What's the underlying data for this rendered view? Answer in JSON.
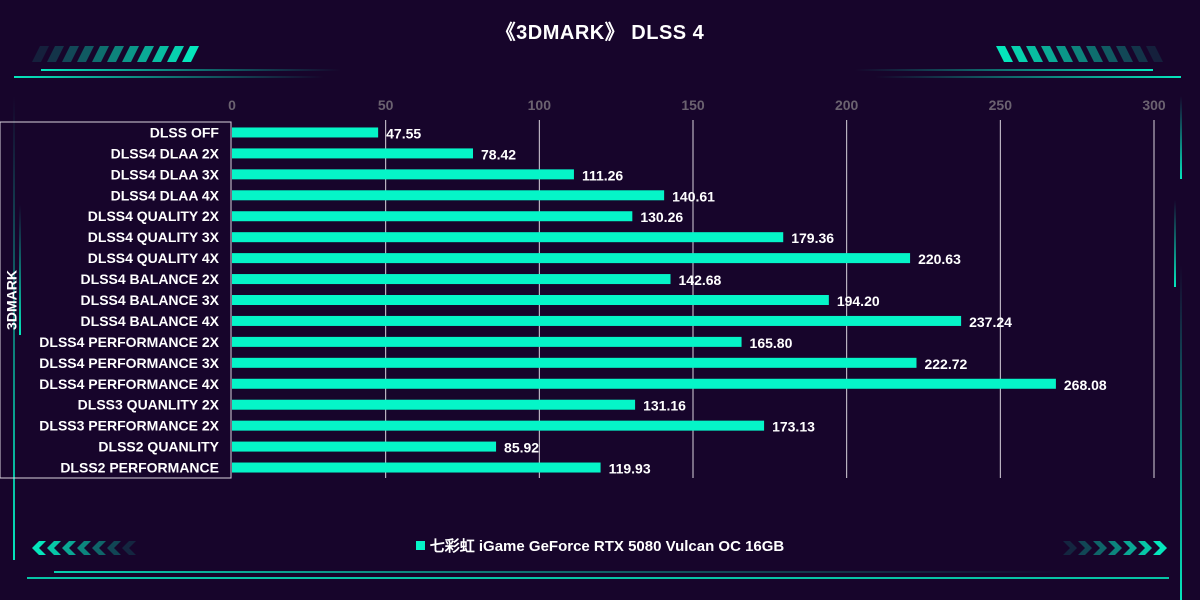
{
  "colors": {
    "background": "#17052b",
    "bar": "#05f5c8",
    "accent": "#05e6bc",
    "text": "#ffffff",
    "tick_text": "#6b6270",
    "grid": "#d9d4dd"
  },
  "chart_data": {
    "type": "bar",
    "orientation": "horizontal",
    "title": "《3DMARK》  DLSS 4",
    "xlabel": "",
    "ylabel": "3DMARK",
    "xlim": [
      0,
      300
    ],
    "x_ticks": [
      0,
      50,
      100,
      150,
      200,
      250,
      300
    ],
    "x_axis_position": "top",
    "grid": true,
    "legend_position": "bottom-center",
    "categories": [
      "DLSS OFF",
      "DLSS4 DLAA  2X",
      "DLSS4 DLAA  3X",
      "DLSS4 DLAA  4X",
      "DLSS4 QUALITY 2X",
      "DLSS4 QUALITY 3X",
      "DLSS4 QUALITY 4X",
      "DLSS4 BALANCE 2X",
      "DLSS4 BALANCE 3X",
      "DLSS4 BALANCE 4X",
      "DLSS4 PERFORMANCE 2X",
      "DLSS4 PERFORMANCE 3X",
      "DLSS4 PERFORMANCE 4X",
      "DLSS3 QUANLITY 2X",
      "DLSS3 PERFORMANCE 2X",
      "DLSS2 QUANLITY",
      "DLSS2 PERFORMANCE"
    ],
    "series": [
      {
        "name": "七彩虹 iGame GeForce RTX 5080 Vulcan OC 16GB",
        "values": [
          47.55,
          78.42,
          111.26,
          140.61,
          130.26,
          179.36,
          220.63,
          142.68,
          194.2,
          237.24,
          165.8,
          222.72,
          268.08,
          131.16,
          173.13,
          85.92,
          119.93
        ],
        "value_labels": [
          "47.55",
          "78.42",
          "111.26",
          "140.61",
          "130.26",
          "179.36",
          "220.63",
          "142.68",
          "194.20",
          "237.24",
          "165.80",
          "222.72",
          "268.08",
          "131.16",
          "173.13",
          "85.92",
          "119.93"
        ]
      }
    ]
  },
  "legend": {
    "label": "七彩虹 iGame GeForce RTX 5080 Vulcan OC 16GB"
  }
}
